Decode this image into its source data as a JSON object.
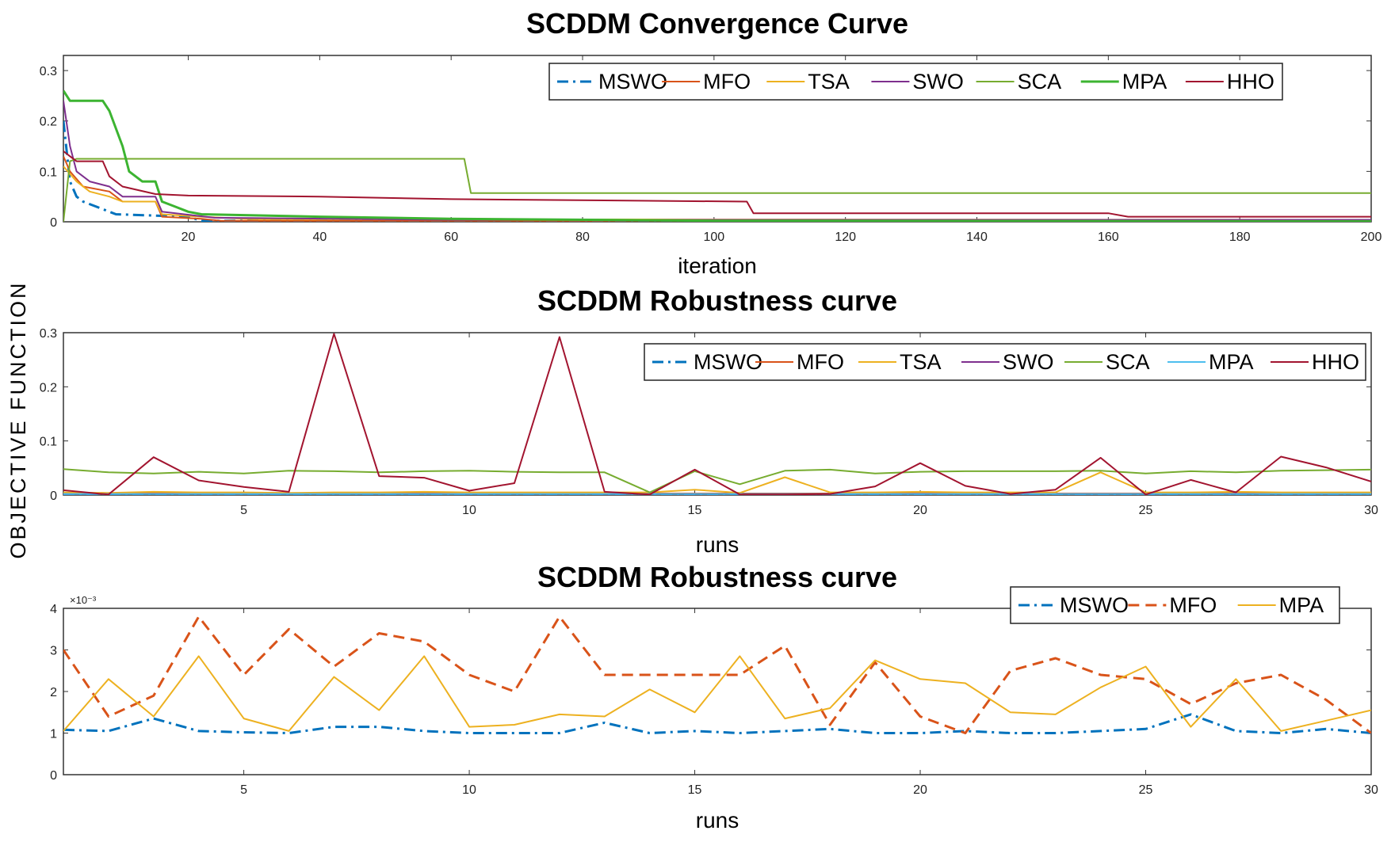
{
  "figure": {
    "shared_ylabel": "OBJECTIVE FUNCTION"
  },
  "chart_data": [
    {
      "type": "line",
      "title": "SCDDM Convergence Curve",
      "xlabel": "iteration",
      "ylabel": "",
      "xlim": [
        1,
        200
      ],
      "ylim": [
        0,
        0.33
      ],
      "xticks": [
        20,
        40,
        60,
        80,
        100,
        120,
        140,
        160,
        180,
        200
      ],
      "yticks": [
        0,
        0.1,
        0.2,
        0.3
      ],
      "ytick_labels": [
        "0",
        "0.1",
        "0.2",
        "0.3"
      ],
      "legend": {
        "position": "top-right",
        "entries": [
          "MSWO",
          "MFO",
          "TSA",
          "SWO",
          "SCA",
          "MPA",
          "HHO"
        ]
      },
      "series": [
        {
          "name": "MSWO",
          "color": "#0072BD",
          "dash": "dashdot",
          "width": 3,
          "x": [
            1,
            2,
            3,
            4,
            6,
            8,
            9,
            20,
            22,
            200
          ],
          "y": [
            0.2,
            0.08,
            0.05,
            0.04,
            0.03,
            0.02,
            0.015,
            0.01,
            0.002,
            0.002
          ]
        },
        {
          "name": "MFO",
          "color": "#D95319",
          "dash": "solid",
          "width": 2,
          "x": [
            1,
            2,
            4,
            8,
            10,
            15,
            16,
            22,
            25,
            200
          ],
          "y": [
            0.13,
            0.1,
            0.07,
            0.06,
            0.04,
            0.04,
            0.01,
            0.006,
            0.002,
            0.002
          ]
        },
        {
          "name": "TSA",
          "color": "#EDB120",
          "dash": "solid",
          "width": 2,
          "x": [
            1,
            3,
            5,
            8,
            10,
            15,
            16,
            22,
            30,
            200
          ],
          "y": [
            0.11,
            0.08,
            0.06,
            0.05,
            0.04,
            0.04,
            0.015,
            0.01,
            0.005,
            0.004
          ]
        },
        {
          "name": "SWO",
          "color": "#7E2F8E",
          "dash": "solid",
          "width": 2,
          "x": [
            1,
            2,
            3,
            5,
            8,
            10,
            15,
            16,
            24,
            60,
            200
          ],
          "y": [
            0.24,
            0.15,
            0.1,
            0.08,
            0.07,
            0.05,
            0.05,
            0.02,
            0.008,
            0.004,
            0.004
          ]
        },
        {
          "name": "SCA",
          "color": "#77AC30",
          "dash": "solid",
          "width": 2,
          "x": [
            1,
            2,
            3,
            10,
            62,
            63,
            200
          ],
          "y": [
            0.0,
            0.12,
            0.125,
            0.125,
            0.125,
            0.057,
            0.057
          ]
        },
        {
          "name": "MPA",
          "color": "#3CB431",
          "dash": "solid",
          "width": 3,
          "x": [
            1,
            2,
            7,
            8,
            10,
            11,
            13,
            15,
            16,
            18,
            20,
            22,
            40,
            60,
            100,
            200
          ],
          "y": [
            0.26,
            0.24,
            0.24,
            0.22,
            0.15,
            0.1,
            0.08,
            0.08,
            0.04,
            0.03,
            0.02,
            0.015,
            0.01,
            0.006,
            0.002,
            0.001
          ]
        },
        {
          "name": "HHO",
          "color": "#A2142F",
          "dash": "solid",
          "width": 2,
          "x": [
            1,
            2,
            3,
            7,
            8,
            10,
            15,
            20,
            40,
            60,
            105,
            106,
            160,
            163,
            200
          ],
          "y": [
            0.14,
            0.13,
            0.12,
            0.12,
            0.09,
            0.07,
            0.055,
            0.052,
            0.05,
            0.045,
            0.04,
            0.017,
            0.017,
            0.01,
            0.01
          ]
        }
      ]
    },
    {
      "type": "line",
      "title": "SCDDM Robustness curve",
      "xlabel": "runs",
      "ylabel": "",
      "xlim": [
        1,
        30
      ],
      "ylim": [
        0,
        0.3
      ],
      "xticks": [
        5,
        10,
        15,
        20,
        25,
        30
      ],
      "yticks": [
        0,
        0.1,
        0.2,
        0.3
      ],
      "ytick_labels": [
        "0",
        "0.1",
        "0.2",
        "0.3"
      ],
      "legend": {
        "position": "top-right",
        "entries": [
          "MSWO",
          "MFO",
          "TSA",
          "SWO",
          "SCA",
          "MPA",
          "HHO"
        ]
      },
      "series": [
        {
          "name": "MSWO",
          "color": "#0072BD",
          "dash": "dashdot",
          "width": 3,
          "x": [
            1,
            30
          ],
          "y": [
            0.001,
            0.001
          ]
        },
        {
          "name": "MFO",
          "color": "#D95319",
          "dash": "solid",
          "width": 2,
          "x": [
            1,
            30
          ],
          "y": [
            0.003,
            0.003
          ]
        },
        {
          "name": "TSA",
          "color": "#EDB120",
          "dash": "solid",
          "width": 2,
          "x": [
            1,
            2,
            3,
            4,
            5,
            6,
            7,
            8,
            9,
            10,
            11,
            12,
            13,
            14,
            15,
            16,
            17,
            18,
            19,
            20,
            21,
            22,
            23,
            24,
            25,
            26,
            27,
            28,
            29,
            30
          ],
          "y": [
            0.005,
            0.004,
            0.006,
            0.005,
            0.005,
            0.004,
            0.005,
            0.005,
            0.006,
            0.005,
            0.005,
            0.005,
            0.005,
            0.005,
            0.01,
            0.004,
            0.033,
            0.005,
            0.005,
            0.006,
            0.005,
            0.005,
            0.005,
            0.042,
            0.005,
            0.005,
            0.006,
            0.005,
            0.005,
            0.005
          ]
        },
        {
          "name": "SWO",
          "color": "#7E2F8E",
          "dash": "solid",
          "width": 2,
          "x": [
            1,
            30
          ],
          "y": [
            0.002,
            0.002
          ]
        },
        {
          "name": "SCA",
          "color": "#77AC30",
          "dash": "solid",
          "width": 2,
          "x": [
            1,
            2,
            3,
            4,
            5,
            6,
            7,
            8,
            9,
            10,
            11,
            12,
            13,
            14,
            15,
            16,
            17,
            18,
            19,
            20,
            21,
            22,
            23,
            24,
            25,
            26,
            27,
            28,
            29,
            30
          ],
          "y": [
            0.048,
            0.042,
            0.04,
            0.043,
            0.04,
            0.045,
            0.044,
            0.042,
            0.044,
            0.045,
            0.043,
            0.042,
            0.042,
            0.005,
            0.044,
            0.02,
            0.045,
            0.047,
            0.04,
            0.043,
            0.044,
            0.044,
            0.044,
            0.045,
            0.04,
            0.044,
            0.042,
            0.045,
            0.046,
            0.047
          ]
        },
        {
          "name": "MPA",
          "color": "#4DBEEE",
          "dash": "solid",
          "width": 2,
          "x": [
            1,
            30
          ],
          "y": [
            0.002,
            0.002
          ]
        },
        {
          "name": "HHO",
          "color": "#A2142F",
          "dash": "solid",
          "width": 2,
          "x": [
            1,
            2,
            3,
            4,
            5,
            6,
            7,
            8,
            9,
            10,
            11,
            12,
            13,
            14,
            15,
            16,
            17,
            18,
            19,
            20,
            21,
            22,
            23,
            24,
            25,
            26,
            27,
            28,
            29,
            30
          ],
          "y": [
            0.009,
            0.001,
            0.07,
            0.027,
            0.015,
            0.006,
            0.298,
            0.035,
            0.032,
            0.008,
            0.022,
            0.292,
            0.006,
            0.001,
            0.047,
            0.001,
            0.001,
            0.002,
            0.016,
            0.059,
            0.017,
            0.002,
            0.01,
            0.069,
            0.001,
            0.028,
            0.005,
            0.071,
            0.051,
            0.025
          ]
        }
      ]
    },
    {
      "type": "line",
      "title": "SCDDM Robustness curve",
      "xlabel": "runs",
      "ylabel": "",
      "y_multiplier": "×10⁻³",
      "xlim": [
        1,
        30
      ],
      "ylim": [
        0,
        4
      ],
      "xticks": [
        5,
        10,
        15,
        20,
        25,
        30
      ],
      "yticks": [
        0,
        1,
        2,
        3,
        4
      ],
      "ytick_labels": [
        "0",
        "1",
        "2",
        "3",
        "4"
      ],
      "legend": {
        "position": "top-right",
        "entries": [
          "MSWO",
          "MFO",
          "MPA"
        ]
      },
      "series": [
        {
          "name": "MSWO",
          "color": "#0072BD",
          "dash": "dashdot",
          "width": 3,
          "x": [
            1,
            2,
            3,
            4,
            5,
            6,
            7,
            8,
            9,
            10,
            11,
            12,
            13,
            14,
            15,
            16,
            17,
            18,
            19,
            20,
            21,
            22,
            23,
            24,
            25,
            26,
            27,
            28,
            29,
            30
          ],
          "y": [
            1.08,
            1.05,
            1.35,
            1.05,
            1.02,
            1.0,
            1.15,
            1.15,
            1.05,
            1.0,
            1.0,
            1.0,
            1.25,
            1.0,
            1.05,
            1.0,
            1.05,
            1.1,
            1.0,
            1.0,
            1.05,
            1.0,
            1.0,
            1.05,
            1.1,
            1.45,
            1.05,
            1.0,
            1.1,
            1.0
          ]
        },
        {
          "name": "MFO",
          "color": "#D95319",
          "dash": "dashed",
          "width": 3,
          "x": [
            1,
            2,
            3,
            4,
            5,
            6,
            7,
            8,
            9,
            10,
            11,
            12,
            13,
            14,
            15,
            16,
            17,
            18,
            19,
            20,
            21,
            22,
            23,
            24,
            25,
            26,
            27,
            28,
            29,
            30
          ],
          "y": [
            3.0,
            1.4,
            1.9,
            3.8,
            2.4,
            3.5,
            2.6,
            3.4,
            3.2,
            2.4,
            2.0,
            3.8,
            2.4,
            2.4,
            2.4,
            2.4,
            3.1,
            1.2,
            2.7,
            1.4,
            1.0,
            2.5,
            2.8,
            2.4,
            2.3,
            1.7,
            2.2,
            2.4,
            1.8,
            1.0
          ]
        },
        {
          "name": "MPA",
          "color": "#EDB120",
          "dash": "solid",
          "width": 2,
          "x": [
            1,
            2,
            3,
            4,
            5,
            6,
            7,
            8,
            9,
            10,
            11,
            12,
            13,
            14,
            15,
            16,
            17,
            18,
            19,
            20,
            21,
            22,
            23,
            24,
            25,
            26,
            27,
            28,
            29,
            30
          ],
          "y": [
            1.05,
            2.3,
            1.4,
            2.85,
            1.35,
            1.05,
            2.35,
            1.55,
            2.85,
            1.15,
            1.2,
            1.45,
            1.4,
            2.05,
            1.5,
            2.85,
            1.35,
            1.6,
            2.75,
            2.3,
            2.2,
            1.5,
            1.45,
            2.1,
            2.6,
            1.15,
            2.3,
            1.05,
            1.3,
            1.55
          ]
        }
      ]
    }
  ]
}
